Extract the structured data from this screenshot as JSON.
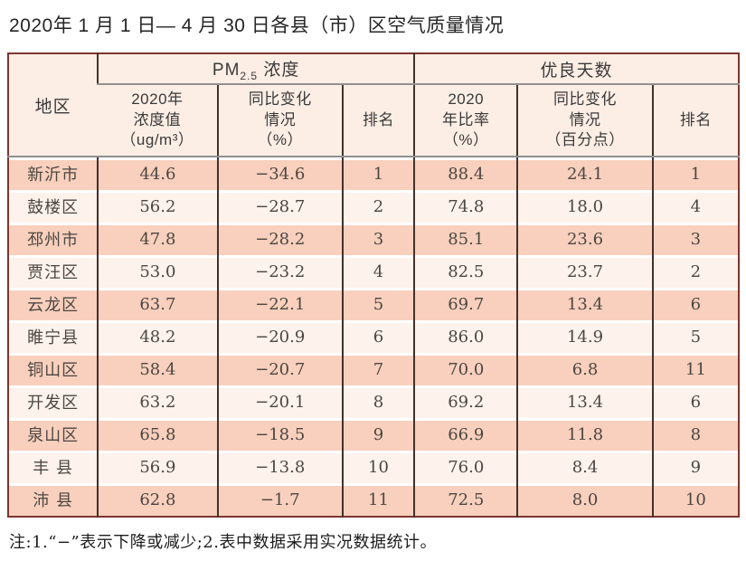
{
  "title": "2020年 1 月 1 日— 4 月 30 日各县（市）区空气质量情况",
  "table": {
    "header": {
      "region": "地区",
      "pm_group": {
        "prefix": "PM",
        "sub": "2.5",
        "suffix": " 浓度"
      },
      "good_group": "优良天数",
      "cols": [
        "2020年\n浓度值\n（ug/m³）",
        "同比变化\n情况\n（%）",
        "排名",
        "2020\n年比率\n（%）",
        "同比变化\n情况\n（百分点）",
        "排名"
      ]
    },
    "rows": [
      {
        "region": "新沂市",
        "pm_value": "44.6",
        "pm_change": "−34.6",
        "pm_rank": "1",
        "ratio": "88.4",
        "ratio_change": "24.1",
        "ratio_rank": "1"
      },
      {
        "region": "鼓楼区",
        "pm_value": "56.2",
        "pm_change": "−28.7",
        "pm_rank": "2",
        "ratio": "74.8",
        "ratio_change": "18.0",
        "ratio_rank": "4"
      },
      {
        "region": "邳州市",
        "pm_value": "47.8",
        "pm_change": "−28.2",
        "pm_rank": "3",
        "ratio": "85.1",
        "ratio_change": "23.6",
        "ratio_rank": "3"
      },
      {
        "region": "贾汪区",
        "pm_value": "53.0",
        "pm_change": "−23.2",
        "pm_rank": "4",
        "ratio": "82.5",
        "ratio_change": "23.7",
        "ratio_rank": "2"
      },
      {
        "region": "云龙区",
        "pm_value": "63.7",
        "pm_change": "−22.1",
        "pm_rank": "5",
        "ratio": "69.7",
        "ratio_change": "13.4",
        "ratio_rank": "6"
      },
      {
        "region": "睢宁县",
        "pm_value": "48.2",
        "pm_change": "−20.9",
        "pm_rank": "6",
        "ratio": "86.0",
        "ratio_change": "14.9",
        "ratio_rank": "5"
      },
      {
        "region": "铜山区",
        "pm_value": "58.4",
        "pm_change": "−20.7",
        "pm_rank": "7",
        "ratio": "70.0",
        "ratio_change": "6.8",
        "ratio_rank": "11"
      },
      {
        "region": "开发区",
        "pm_value": "63.2",
        "pm_change": "−20.1",
        "pm_rank": "8",
        "ratio": "69.2",
        "ratio_change": "13.4",
        "ratio_rank": "6"
      },
      {
        "region": "泉山区",
        "pm_value": "65.8",
        "pm_change": "−18.5",
        "pm_rank": "9",
        "ratio": "66.9",
        "ratio_change": "11.8",
        "ratio_rank": "8"
      },
      {
        "region": "丰 县",
        "pm_value": "56.9",
        "pm_change": "−13.8",
        "pm_rank": "10",
        "ratio": "76.0",
        "ratio_change": "8.4",
        "ratio_rank": "9"
      },
      {
        "region": "沛 县",
        "pm_value": "62.8",
        "pm_change": "−1.7",
        "pm_rank": "11",
        "ratio": "72.5",
        "ratio_change": "8.0",
        "ratio_rank": "10"
      }
    ]
  },
  "note": "注:1.“−”表示下降或减少;2.表中数据采用实况数据统计。",
  "colors": {
    "outer_border": "#7d352d",
    "inner_border": "#45302a",
    "header_line": "#8f8f8f",
    "header_bg": "#fdeee5",
    "header_text": "#3a3a3a",
    "row_odd_bg": "#f8d0bd",
    "row_even_bg": "#fdf2ec",
    "row_gap": "#ffffff",
    "text_dark": "#4c4641",
    "title_color": "#262626"
  }
}
